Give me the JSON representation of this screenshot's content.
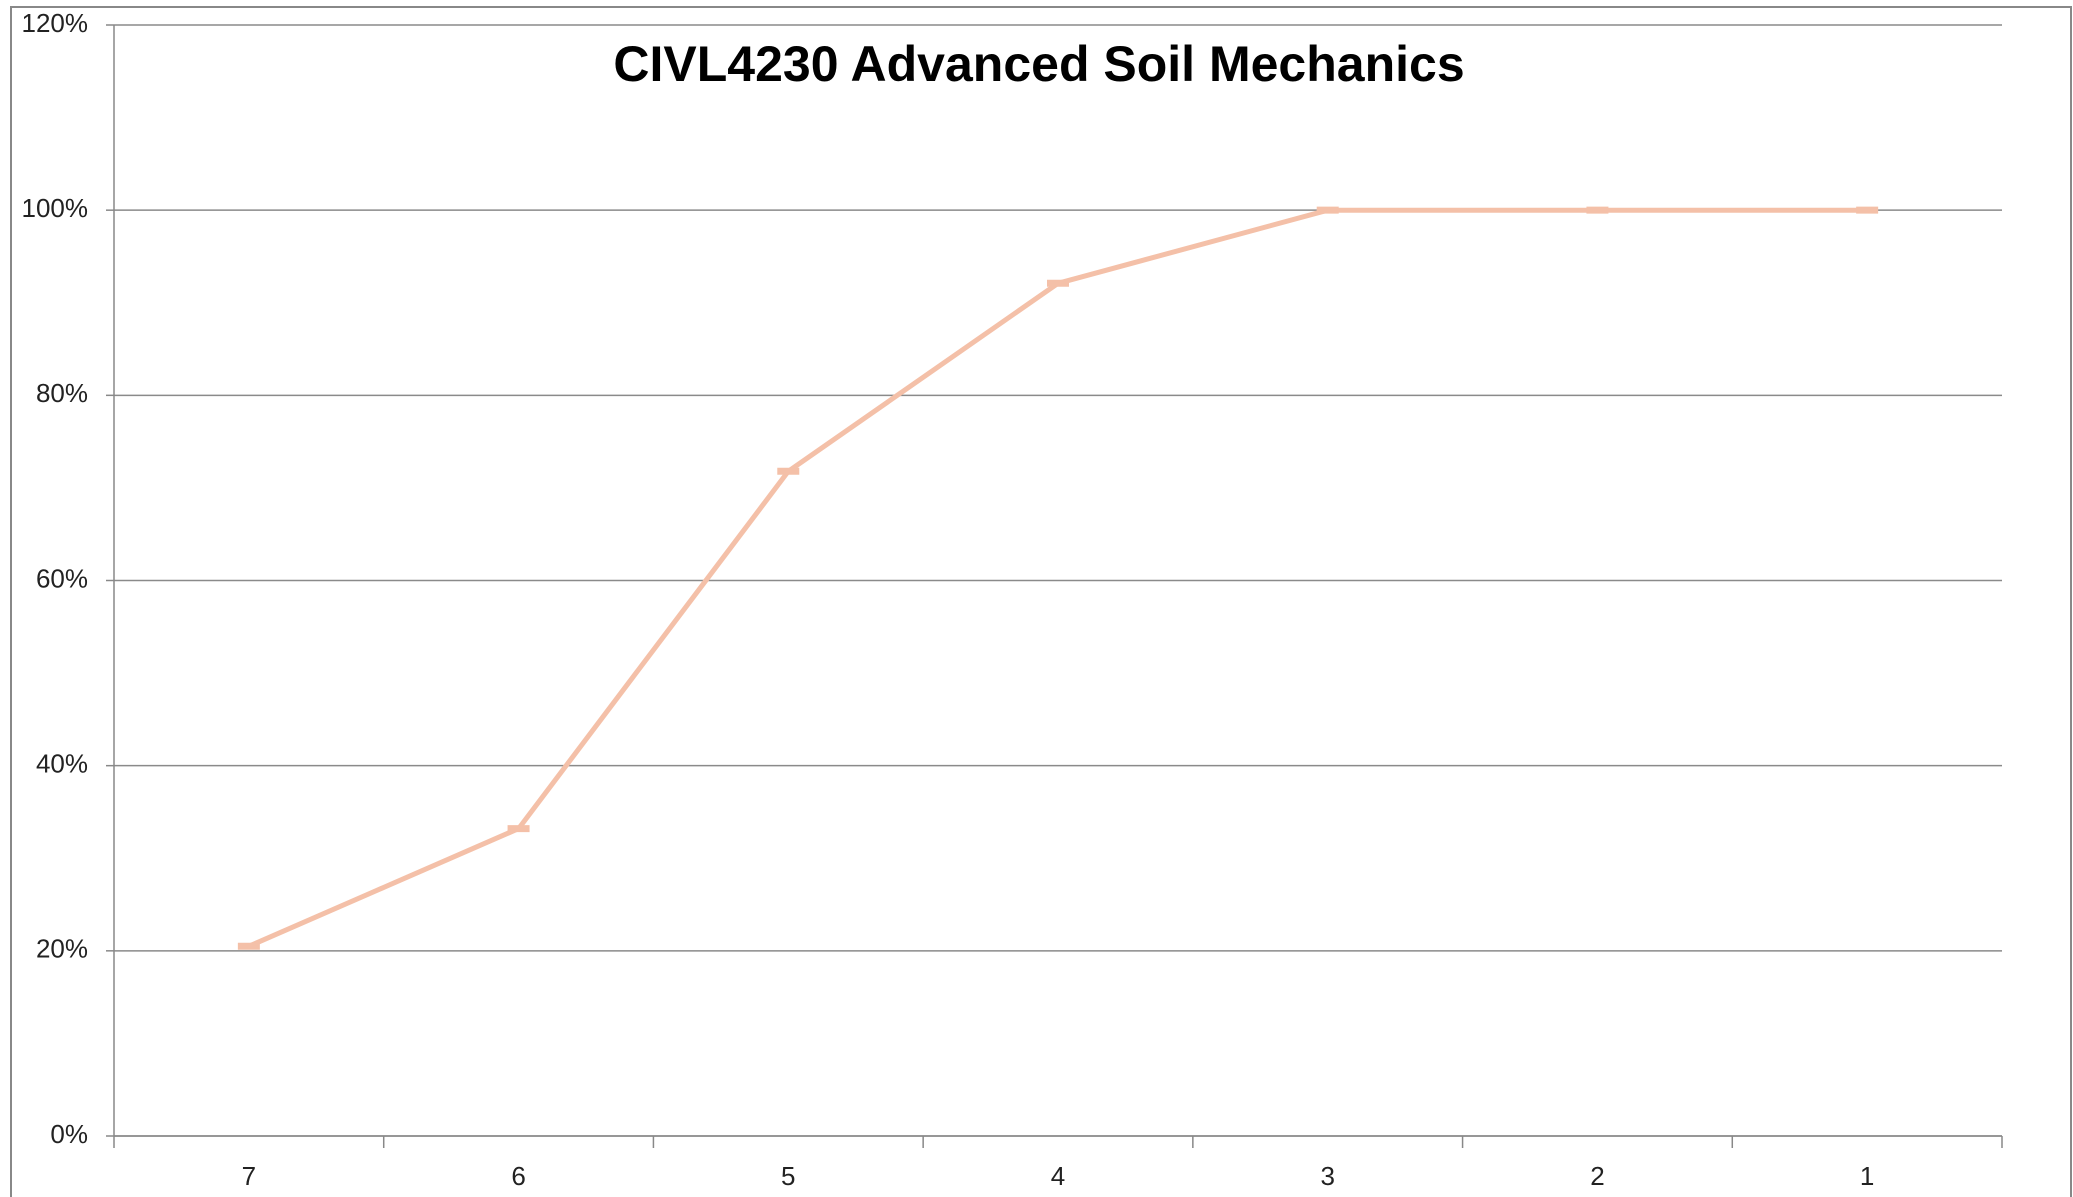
{
  "chart_data": {
    "type": "line",
    "title": "CIVL4230 Advanced Soil Mechanics",
    "categories": [
      "7",
      "6",
      "5",
      "4",
      "3",
      "2",
      "1"
    ],
    "series": [
      {
        "name": "CIVL4230",
        "color": "#f4c0a8",
        "values": [
          20.5,
          33.2,
          71.8,
          92.1,
          100,
          100,
          100
        ]
      }
    ],
    "ylim": [
      0,
      120
    ],
    "yticks": [
      {
        "value": 0,
        "label": "0%"
      },
      {
        "value": 20,
        "label": "20%"
      },
      {
        "value": 40,
        "label": "40%"
      },
      {
        "value": 60,
        "label": "60%"
      },
      {
        "value": 80,
        "label": "80%"
      },
      {
        "value": 100,
        "label": "100%"
      },
      {
        "value": 120,
        "label": "120%"
      }
    ],
    "grid": true
  }
}
